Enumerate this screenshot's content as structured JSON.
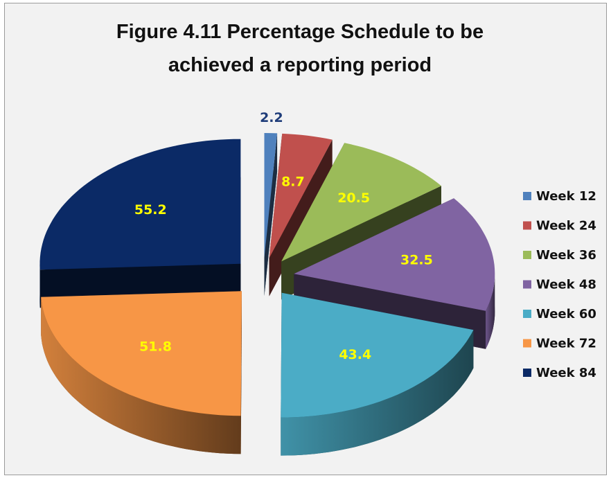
{
  "chart_data": {
    "type": "pie3d",
    "title": "Figure 4.11 Percentage Schedule to be achieved a reporting period",
    "categories": [
      "Week 12",
      "Week 24",
      "Week 36",
      "Week 48",
      "Week 60",
      "Week 72",
      "Week 84"
    ],
    "values": [
      2.2,
      8.7,
      20.5,
      32.5,
      43.4,
      51.8,
      55.2
    ],
    "colors": [
      "#4f81bd",
      "#c0504d",
      "#9bbb59",
      "#8064a2",
      "#4bacc6",
      "#f79646",
      "#0b2a66"
    ],
    "label_colors": [
      "#1f3d7a",
      "#ffff00",
      "#ffff00",
      "#ffff00",
      "#ffff00",
      "#ffff00",
      "#ffff00"
    ],
    "legend": "right"
  }
}
